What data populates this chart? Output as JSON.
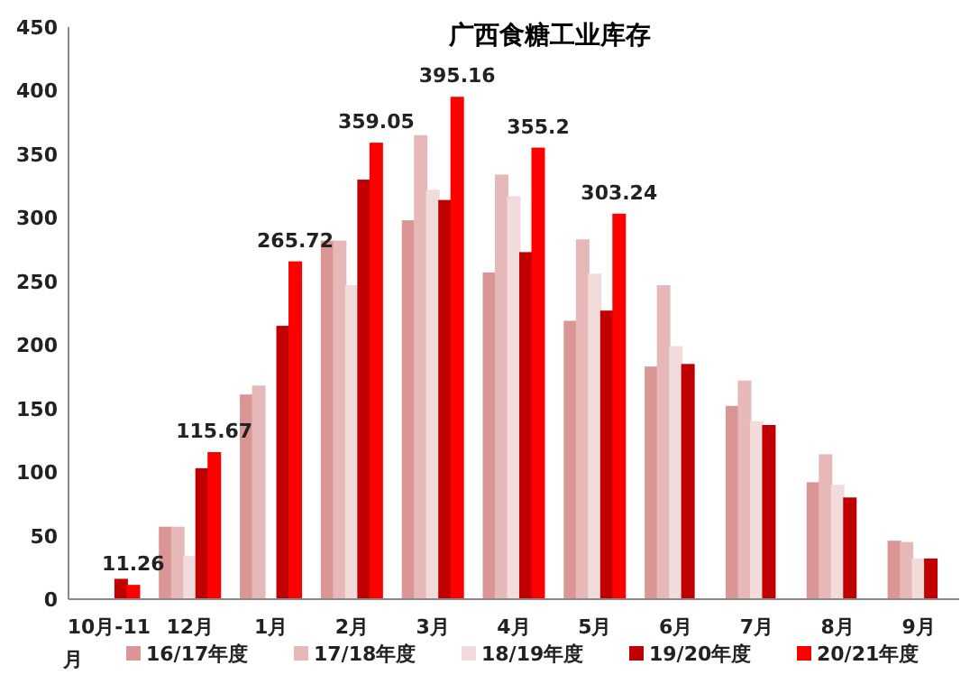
{
  "chart_data": {
    "type": "bar",
    "title": "广西食糖工业库存",
    "categories": [
      "10月-11月",
      "12月",
      "1月",
      "2月",
      "3月",
      "4月",
      "5月",
      "6月",
      "7月",
      "8月",
      "9月"
    ],
    "series": [
      {
        "name": "16/17年度",
        "color": "#d99694",
        "values": [
          null,
          57,
          161,
          282,
          298,
          257,
          219,
          183,
          152,
          92,
          46
        ]
      },
      {
        "name": "17/18年度",
        "color": "#e6b9b8",
        "values": [
          null,
          57,
          168,
          282,
          365,
          334,
          283,
          247,
          172,
          114,
          45
        ]
      },
      {
        "name": "18/19年度",
        "color": "#f2dcdb",
        "values": [
          null,
          34,
          null,
          247,
          322,
          317,
          256,
          199,
          140,
          90,
          32
        ]
      },
      {
        "name": "19/20年度",
        "color": "#c00000",
        "values": [
          16,
          103,
          215,
          330,
          314,
          273,
          227,
          185,
          137,
          80,
          32
        ]
      },
      {
        "name": "20/21年度",
        "color": "#ff0000",
        "values": [
          11.26,
          115.67,
          265.72,
          359.05,
          395.16,
          355.2,
          303.24,
          null,
          null,
          null,
          null
        ],
        "value_labels": [
          "11.26",
          "115.67",
          "265.72",
          "359.05",
          "395.16",
          "355.2",
          "303.24",
          null,
          null,
          null,
          null
        ]
      }
    ],
    "ylim": [
      0,
      450
    ],
    "yticks": [
      0,
      50,
      100,
      150,
      200,
      250,
      300,
      350,
      400,
      450
    ],
    "legend": "bottom",
    "grid": false
  }
}
